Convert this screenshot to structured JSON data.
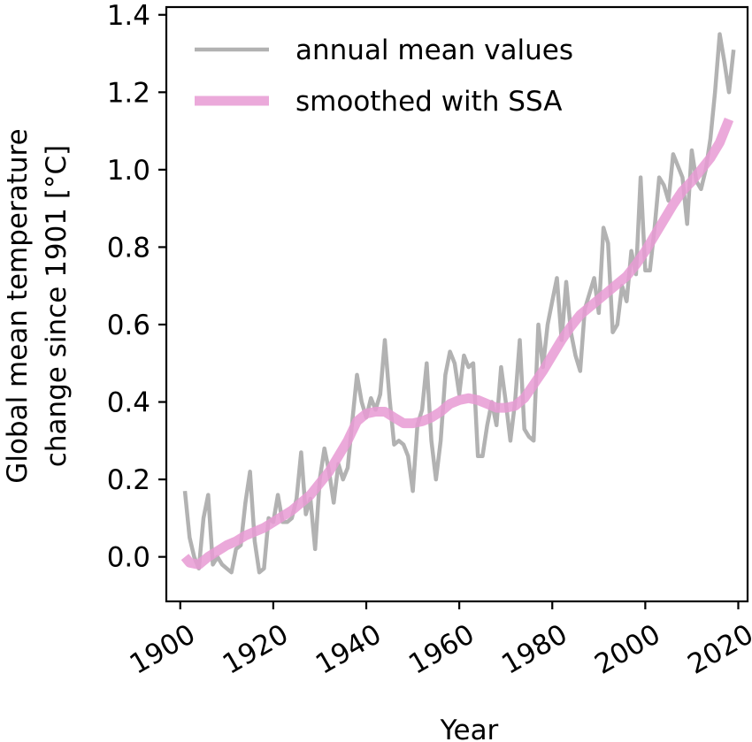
{
  "chart_data": {
    "type": "line",
    "title": "",
    "xlabel": "Year",
    "ylabel_lines": [
      "Global mean temperature",
      "change since 1901 [°C]"
    ],
    "xlim": [
      1897,
      2022
    ],
    "ylim": [
      -0.115,
      1.42
    ],
    "xticks": [
      1900,
      1920,
      1940,
      1960,
      1980,
      2000,
      2020
    ],
    "yticks": [
      "0.0",
      "0.2",
      "0.4",
      "0.6",
      "0.8",
      "1.0",
      "1.2",
      "1.4"
    ],
    "grid": false,
    "legend_position": "top-left",
    "series": [
      {
        "name": "annual mean values",
        "color": "#b2b2b2",
        "x": [
          1901,
          1902,
          1903,
          1904,
          1905,
          1906,
          1907,
          1908,
          1909,
          1910,
          1911,
          1912,
          1913,
          1914,
          1915,
          1916,
          1917,
          1918,
          1919,
          1920,
          1921,
          1922,
          1923,
          1924,
          1925,
          1926,
          1927,
          1928,
          1929,
          1930,
          1931,
          1932,
          1933,
          1934,
          1935,
          1936,
          1937,
          1938,
          1939,
          1940,
          1941,
          1942,
          1943,
          1944,
          1945,
          1946,
          1947,
          1948,
          1949,
          1950,
          1951,
          1952,
          1953,
          1954,
          1955,
          1956,
          1957,
          1958,
          1959,
          1960,
          1961,
          1962,
          1963,
          1964,
          1965,
          1966,
          1967,
          1968,
          1969,
          1970,
          1971,
          1972,
          1973,
          1974,
          1975,
          1976,
          1977,
          1978,
          1979,
          1980,
          1981,
          1982,
          1983,
          1984,
          1985,
          1986,
          1987,
          1988,
          1989,
          1990,
          1991,
          1992,
          1993,
          1994,
          1995,
          1996,
          1997,
          1998,
          1999,
          2000,
          2001,
          2002,
          2003,
          2004,
          2005,
          2006,
          2007,
          2008,
          2009,
          2010,
          2011,
          2012,
          2013,
          2014,
          2015,
          2016,
          2017,
          2018,
          2019
        ],
        "values": [
          0.17,
          0.05,
          0.0,
          -0.03,
          0.1,
          0.16,
          -0.02,
          0.0,
          -0.02,
          -0.03,
          -0.04,
          0.02,
          0.03,
          0.14,
          0.22,
          0.04,
          -0.04,
          -0.03,
          0.1,
          0.09,
          0.16,
          0.09,
          0.09,
          0.1,
          0.15,
          0.27,
          0.11,
          0.15,
          0.02,
          0.2,
          0.28,
          0.22,
          0.14,
          0.24,
          0.2,
          0.23,
          0.35,
          0.47,
          0.4,
          0.36,
          0.41,
          0.38,
          0.42,
          0.56,
          0.41,
          0.29,
          0.3,
          0.29,
          0.26,
          0.17,
          0.34,
          0.38,
          0.5,
          0.3,
          0.2,
          0.3,
          0.47,
          0.53,
          0.5,
          0.42,
          0.52,
          0.49,
          0.5,
          0.26,
          0.26,
          0.34,
          0.4,
          0.34,
          0.49,
          0.4,
          0.3,
          0.4,
          0.56,
          0.33,
          0.31,
          0.3,
          0.6,
          0.49,
          0.6,
          0.66,
          0.72,
          0.56,
          0.71,
          0.58,
          0.52,
          0.48,
          0.64,
          0.68,
          0.72,
          0.63,
          0.85,
          0.81,
          0.58,
          0.6,
          0.7,
          0.66,
          0.79,
          0.73,
          0.98,
          0.74,
          0.74,
          0.85,
          0.98,
          0.96,
          0.92,
          1.04,
          1.01,
          0.98,
          0.86,
          1.05,
          0.97,
          0.95,
          1.0,
          1.08,
          1.2,
          1.35,
          1.28,
          1.2,
          1.31
        ]
      },
      {
        "name": "smoothed with SSA",
        "color": "#e89ad3",
        "x": [
          1901,
          1902,
          1904,
          1906,
          1908,
          1910,
          1912,
          1914,
          1916,
          1918,
          1920,
          1922,
          1924,
          1926,
          1928,
          1930,
          1932,
          1934,
          1936,
          1938,
          1940,
          1942,
          1944,
          1946,
          1948,
          1950,
          1952,
          1954,
          1956,
          1958,
          1960,
          1962,
          1964,
          1966,
          1968,
          1970,
          1972,
          1974,
          1976,
          1978,
          1980,
          1982,
          1984,
          1986,
          1988,
          1990,
          1992,
          1994,
          1996,
          1998,
          2000,
          2002,
          2004,
          2006,
          2008,
          2010,
          2012,
          2014,
          2016,
          2018
        ],
        "values": [
          0.0,
          -0.015,
          -0.02,
          0.0,
          0.015,
          0.03,
          0.04,
          0.055,
          0.065,
          0.075,
          0.09,
          0.105,
          0.12,
          0.14,
          0.16,
          0.19,
          0.22,
          0.26,
          0.3,
          0.35,
          0.37,
          0.375,
          0.375,
          0.36,
          0.345,
          0.345,
          0.35,
          0.36,
          0.375,
          0.395,
          0.405,
          0.41,
          0.405,
          0.395,
          0.385,
          0.385,
          0.39,
          0.41,
          0.445,
          0.48,
          0.52,
          0.56,
          0.595,
          0.625,
          0.645,
          0.665,
          0.685,
          0.705,
          0.725,
          0.755,
          0.79,
          0.83,
          0.87,
          0.91,
          0.945,
          0.97,
          1.0,
          1.03,
          1.07,
          1.13
        ]
      }
    ]
  }
}
